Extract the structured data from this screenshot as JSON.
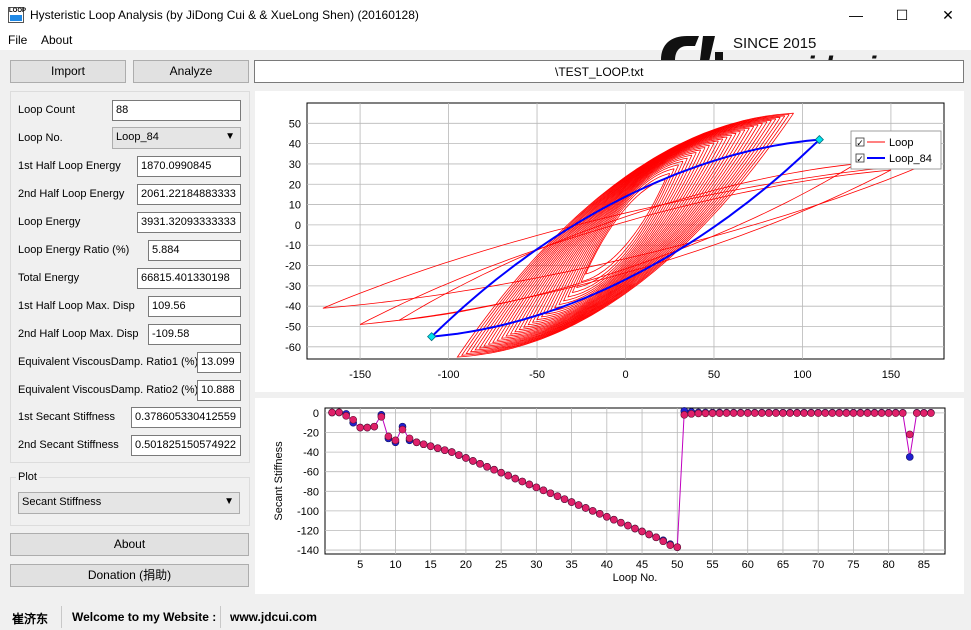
{
  "window": {
    "title": "Hysteristic Loop Analysis (by JiDong Cui & & XueLong Shen) (20160128)",
    "icon_text": "LOOP",
    "controls": {
      "minimize": "—",
      "maximize": "☐",
      "close": "✕"
    }
  },
  "menu": {
    "file": "File",
    "about": "About"
  },
  "toolbar": {
    "import_label": "Import",
    "analyze_label": "Analyze"
  },
  "file_path": "\\TEST_LOOP.txt",
  "watermark": {
    "since": "SINCE 2015",
    "site": "www.jdcui.com"
  },
  "fields": [
    {
      "label": "Loop Count",
      "value": "88"
    },
    {
      "label": "1st Half Loop Energy",
      "value": "1870.0990845"
    },
    {
      "label": "2nd Half Loop Energy",
      "value": "2061.22184883333"
    },
    {
      "label": "Loop Energy",
      "value": "3931.32093333333"
    },
    {
      "label": "Loop Energy Ratio (%)",
      "value": "5.884"
    },
    {
      "label": "Total Energy",
      "value": "66815.401330198"
    },
    {
      "label": "1st Half Loop Max. Disp",
      "value": "109.56"
    },
    {
      "label": "2nd Half Loop Max. Disp",
      "value": "-109.58"
    },
    {
      "label": "Equivalent ViscousDamp. Ratio1 (%)",
      "value": "13.099"
    },
    {
      "label": "Equivalent ViscousDamp. Ratio2 (%)",
      "value": "10.888"
    },
    {
      "label": "1st Secant Stiffness",
      "value": "0.378605330412559"
    },
    {
      "label": "2nd Secant Stiffness",
      "value": "0.501825150574922"
    }
  ],
  "loop_no": {
    "label": "Loop No.",
    "selected": "Loop_84"
  },
  "plot": {
    "group_label": "Plot",
    "selected": "Secant Stiffness"
  },
  "buttons": {
    "about_label": "About",
    "donation_label": "Donation (捐助)"
  },
  "status": {
    "author": "崔济东",
    "welcome": "Welcome to my Website :",
    "site": "www.jdcui.com"
  },
  "colors": {
    "loop": "#ff0000",
    "selected_loop": "#0000ff",
    "marker": "#00e5ee",
    "stiffness_a": "#2020d0",
    "stiffness_b": "#e0206a",
    "stiffness_line": "#c000c0"
  },
  "chart_data": [
    {
      "type": "line",
      "name": "hysteresis",
      "legend": [
        "Loop",
        "Loop_84"
      ],
      "legend_position": "top-right",
      "grid": true,
      "xlim": [
        -180,
        180
      ],
      "ylim": [
        -66,
        60
      ],
      "x_ticks": [
        -150,
        -100,
        -50,
        0,
        50,
        100,
        150
      ],
      "y_ticks": [
        50,
        40,
        30,
        20,
        10,
        0,
        -10,
        -20,
        -30,
        -40,
        -50,
        -60
      ],
      "selected_loop": {
        "dmax": 109.56,
        "fmax": 42,
        "dmin": -109.58,
        "fmin": -55
      },
      "red_loop_count": 30,
      "outer_loops": [
        {
          "dmax": 130,
          "fmax": 30,
          "dmin": -128,
          "fmin": -47
        },
        {
          "dmax": 150,
          "fmax": 27,
          "dmin": -150,
          "fmin": -49
        },
        {
          "dmax": 170,
          "fmax": 30,
          "dmin": -171,
          "fmin": -41
        }
      ]
    },
    {
      "type": "scatter",
      "name": "secant-stiffness",
      "ylabel": "Secant Stiffness",
      "xlabel": "Loop No.",
      "grid": true,
      "xlim": [
        0,
        88
      ],
      "ylim": [
        -144,
        5
      ],
      "x_ticks": [
        5,
        10,
        15,
        20,
        25,
        30,
        35,
        40,
        45,
        50,
        55,
        60,
        65,
        70,
        75,
        80,
        85
      ],
      "y_ticks": [
        0,
        -20,
        -40,
        -60,
        -80,
        -100,
        -120,
        -140
      ],
      "series": [
        {
          "values_a": [
            0.4,
            0.5,
            -1,
            -10,
            -15,
            -15,
            -14,
            -2,
            -26,
            -30,
            -14,
            -28,
            -30,
            -32,
            -34,
            -36,
            -38,
            -40,
            -43,
            -46,
            -49,
            -52,
            -55,
            -58,
            -61,
            -64,
            -67,
            -70,
            -73,
            -76,
            -79,
            -82,
            -85,
            -88,
            -91,
            -94,
            -97,
            -100,
            -103,
            -106,
            -109,
            -112,
            -115,
            -118,
            -121,
            -124,
            -127,
            -130,
            -134,
            -137,
            2,
            1,
            0.5,
            0.4,
            0.3,
            0.3,
            0.2,
            0.2,
            0.2,
            0.2,
            0.2,
            0.2,
            0.2,
            0.2,
            0.2,
            0.2,
            0.2,
            0.2,
            0.2,
            0.2,
            0.2,
            0.2,
            0.2,
            0.2,
            0.2,
            0.2,
            0.2,
            0.2,
            0.2,
            0.2,
            0.2,
            0.1,
            -45,
            0.1,
            0.1,
            0.1
          ],
          "values_b": [
            0.4,
            0.5,
            -3,
            -7,
            -15,
            -15,
            -14,
            -4,
            -24,
            -28,
            -17,
            -26,
            -30,
            -32,
            -34,
            -36,
            -38,
            -40,
            -43,
            -46,
            -49,
            -52,
            -55,
            -58,
            -61,
            -64,
            -67,
            -70,
            -73,
            -76,
            -79,
            -82,
            -85,
            -88,
            -91,
            -94,
            -97,
            -100,
            -103,
            -106,
            -109,
            -112,
            -115,
            -118,
            -121,
            -124,
            -127,
            -131,
            -135,
            -137,
            -2,
            -1,
            -0.5,
            -0.4,
            -0.3,
            -0.3,
            -0.2,
            -0.2,
            -0.2,
            -0.2,
            -0.2,
            -0.2,
            -0.2,
            -0.2,
            -0.2,
            -0.2,
            -0.2,
            -0.2,
            -0.2,
            -0.2,
            -0.2,
            -0.2,
            -0.2,
            -0.2,
            -0.2,
            -0.2,
            -0.2,
            -0.2,
            -0.2,
            -0.2,
            -0.2,
            -0.2,
            -22,
            -0.2,
            -0.2,
            -0.2
          ]
        }
      ]
    }
  ]
}
